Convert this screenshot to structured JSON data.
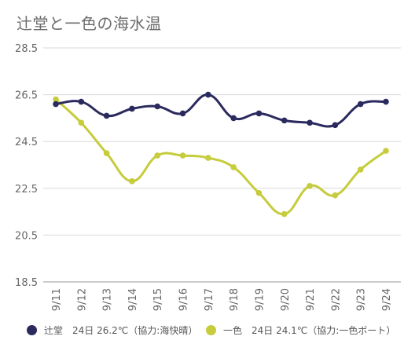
{
  "chart_data": {
    "type": "line",
    "title": "辻堂と一色の海水温",
    "categories": [
      "9/11",
      "9/12",
      "9/13",
      "9/14",
      "9/15",
      "9/16",
      "9/17",
      "9/18",
      "9/19",
      "9/20",
      "9/21",
      "9/22",
      "9/23",
      "9/24"
    ],
    "ylim": [
      18.5,
      28.5
    ],
    "yticks": [
      "28.5",
      "26.5",
      "24.5",
      "22.5",
      "20.5",
      "18.5"
    ],
    "grid": true,
    "legend_position": "bottom",
    "series": [
      {
        "name": "辻堂",
        "legend_label": "辻堂　24日 26.2℃（協力:海快晴）",
        "color": "#2b2a5e",
        "values": [
          26.1,
          26.2,
          25.6,
          25.9,
          26.0,
          25.7,
          26.5,
          25.5,
          25.7,
          25.4,
          25.3,
          25.2,
          26.1,
          26.2
        ]
      },
      {
        "name": "一色",
        "legend_label": "一色　24日 24.1℃（協力:一色ボート）",
        "color": "#c6cc3c",
        "values": [
          26.3,
          25.3,
          24.0,
          22.8,
          23.9,
          23.9,
          23.8,
          23.4,
          22.3,
          21.4,
          22.6,
          22.2,
          23.3,
          24.1
        ]
      }
    ]
  }
}
